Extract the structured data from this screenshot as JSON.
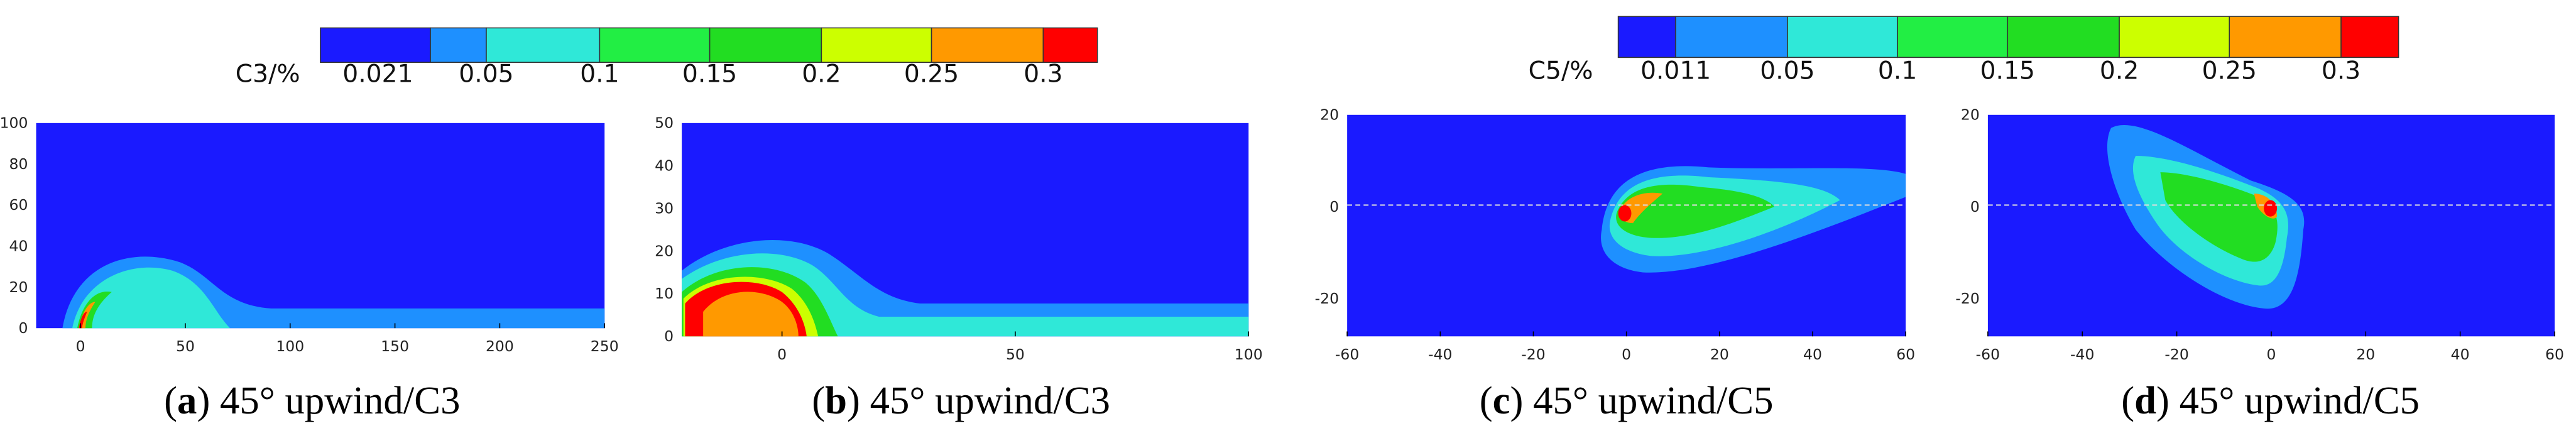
{
  "colorbars": [
    {
      "label": "C3/%",
      "ticks": [
        0.021,
        0.05,
        0.1,
        0.15,
        0.2,
        0.25,
        0.3
      ]
    },
    {
      "label": "C5/%",
      "ticks": [
        0.011,
        0.05,
        0.1,
        0.15,
        0.2,
        0.25,
        0.3
      ]
    }
  ],
  "panels": [
    {
      "caption_letter": "a",
      "caption": "45° upwind/C3",
      "xticks": [
        0,
        50,
        100,
        150,
        200,
        250
      ],
      "yticks": [
        0,
        20,
        40,
        60,
        80,
        100
      ]
    },
    {
      "caption_letter": "b",
      "caption": "45° upwind/C3",
      "xticks": [
        0,
        50,
        100
      ],
      "yticks": [
        0,
        10,
        20,
        30,
        40,
        50
      ]
    },
    {
      "caption_letter": "c",
      "caption": "45° upwind/C5",
      "xticks": [
        -60,
        -40,
        -20,
        0,
        20,
        40,
        60
      ],
      "yticks": [
        20,
        0,
        -20
      ]
    },
    {
      "caption_letter": "d",
      "caption": "45° upwind/C5",
      "xticks": [
        -60,
        -40,
        -20,
        0,
        20,
        40,
        60
      ],
      "yticks": [
        20,
        0,
        -20
      ]
    }
  ]
}
